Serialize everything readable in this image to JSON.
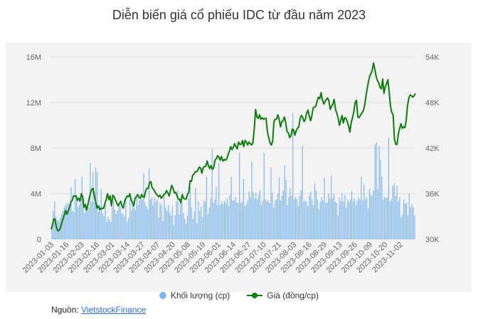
{
  "title": "Diễn biến giá cổ phiếu IDC từ đầu năm 2023",
  "legend": {
    "volume_label": "Khối lượng (cp)",
    "price_label": "Giá (đồng/cp)"
  },
  "source": {
    "label": "Nguồn:",
    "link_text": "VietstockFinance"
  },
  "colors": {
    "volume": "#7cb5ec",
    "price": "#0a7d0a",
    "grid": "#dcdcdc",
    "axis_text": "#666666"
  },
  "chart_data": {
    "type": "bar+line",
    "title": "Diễn biến giá cổ phiếu IDC từ đầu năm 2023",
    "x_tick_labels": [
      "2023-01-03",
      "2023-01-16",
      "2023-02-03",
      "2023-02-16",
      "2023-03-01",
      "2023-03-14",
      "2023-03-27",
      "2023-04-07",
      "2023-04-20",
      "2023-05-08",
      "2023-05-19",
      "2023-06-01",
      "2023-06-14",
      "2023-06-27",
      "2023-07-10",
      "2023-07-21",
      "2023-08-03",
      "2023-08-16",
      "2023-08-29",
      "2023-09-13",
      "2023-09-26",
      "2023-10-09",
      "2023-10-20",
      "2023-11-02"
    ],
    "left_axis": {
      "label": "Khối lượng (cp)",
      "ylim": [
        0,
        16000000
      ],
      "ticks": [
        0,
        4000000,
        8000000,
        12000000,
        16000000
      ],
      "tick_labels": [
        "0",
        "4M",
        "8M",
        "12M",
        "16M"
      ]
    },
    "right_axis": {
      "label": "Giá (đồng/cp)",
      "ylim": [
        30000,
        54000
      ],
      "ticks": [
        30000,
        36000,
        42000,
        48000,
        54000
      ],
      "tick_labels": [
        "30K",
        "36K",
        "42K",
        "48K",
        "54K"
      ]
    },
    "series": [
      {
        "name": "Khối lượng (cp)",
        "type": "bar",
        "axis": "left",
        "values_millions": [
          1.0,
          2.5,
          3.3,
          2.0,
          1.7,
          1.6,
          1.9,
          2.2,
          2.5,
          2.8,
          3.0,
          3.2,
          3.1,
          2.9,
          4.6,
          2.5,
          2.4,
          5.3,
          3.4,
          2.8,
          3.0,
          3.2,
          5.5,
          3.4,
          2.3,
          2.5,
          2.4,
          2.8,
          6.7,
          3.3,
          5.9,
          3.2,
          6.3,
          5.9,
          2.4,
          2.9,
          4.4,
          2.3,
          2.0,
          3.1,
          1.5,
          2.0,
          1.7,
          1.5,
          2.8,
          3.4,
          2.6,
          2.2,
          2.5,
          3.1,
          2.9,
          2.3,
          2.2,
          2.0,
          3.5,
          1.5,
          1.9,
          3.6,
          2.5,
          3.3,
          2.8,
          2.6,
          3.8,
          3.0,
          3.4,
          3.7,
          3.5,
          5.8,
          3.2,
          2.9,
          2.6,
          6.2,
          3.5,
          3.7,
          3.0,
          3.7,
          3.3,
          3.5,
          1.9,
          3.2,
          3.0,
          1.6,
          3.8,
          2.8,
          2.5,
          3.0,
          2.4,
          2.1,
          2.9,
          1.3,
          2.1,
          3.3,
          4.3,
          2.2,
          3.5,
          3.2,
          2.3,
          1.8,
          1.4,
          2.1,
          3.6,
          4.6,
          2.8,
          1.8,
          2.4,
          4.5,
          1.4,
          3.3,
          2.5,
          2.9,
          1.9,
          3.4,
          3.3,
          5.5,
          2.2,
          2.8,
          3.6,
          7.9,
          3.2,
          3.5,
          4.6,
          3.0,
          6.7,
          3.0,
          3.3,
          3.1,
          3.4,
          3.2,
          3.6,
          2.9,
          3.9,
          5.5,
          3.4,
          3.4,
          3.7,
          3.2,
          3.2,
          7.6,
          3.2,
          3.3,
          5.3,
          2.9,
          3.1,
          3.4,
          4.2,
          3.7,
          6.8,
          4.1,
          3.6,
          4.1,
          3.5,
          3.9,
          4.3,
          3.0,
          3.4,
          7.6,
          3.5,
          3.3,
          3.4,
          3.2,
          6.3,
          4.1,
          2.8,
          3.4,
          3.5,
          4.0,
          5.4,
          3.4,
          3.8,
          4.3,
          6.5,
          5.2,
          3.0,
          3.7,
          4.5,
          3.8,
          11.1,
          3.5,
          3.7,
          3.5,
          2.9,
          3.8,
          4.3,
          8.2,
          3.3,
          3.4,
          3.3,
          2.9,
          3.8,
          4.2,
          3.5,
          3.0,
          4.9,
          4.3,
          3.5,
          2.6,
          3.3,
          3.7,
          3.4,
          5.4,
          3.2,
          3.2,
          4.0,
          3.6,
          5.6,
          3.6,
          4.0,
          3.3,
          3.2,
          2.1,
          3.7,
          3.3,
          4.0,
          3.3,
          3.9,
          2.8,
          3.5,
          3.3,
          3.5,
          4.2,
          3.3,
          3.6,
          3.0,
          3.4,
          3.7,
          3.5,
          5.5,
          3.4,
          4.8,
          3.5,
          3.7,
          2.7,
          4.4,
          3.9,
          3.8,
          4.3,
          8.3,
          8.5,
          4.4,
          8.2,
          7.0,
          5.5,
          3.5,
          3.7,
          3.6,
          3.7,
          8.9,
          3.3,
          3.5,
          4.7,
          4.9,
          3.8,
          4.7,
          3.3,
          3.7,
          1.9,
          2.2,
          3.5,
          3.1,
          3.2,
          2.1,
          4.0,
          2.8,
          3.1,
          2.8,
          2.1
        ]
      },
      {
        "name": "Giá (đồng/cp)",
        "type": "line",
        "axis": "right",
        "values_thousands": [
          31.3,
          31.9,
          32.7,
          32.6,
          31.5,
          31.1,
          31.2,
          31.5,
          32.1,
          32.7,
          33.2,
          33.8,
          33.3,
          33.7,
          34.2,
          34.9,
          35.1,
          35.7,
          35.7,
          35.7,
          35.1,
          35.4,
          35.0,
          36.0,
          35.6,
          34.2,
          34.6,
          33.8,
          34.6,
          35.4,
          36.1,
          36.6,
          36.7,
          35.7,
          34.8,
          34.1,
          34.4,
          33.9,
          34.1,
          34.0,
          34.1,
          34.7,
          35.3,
          36.0,
          35.2,
          35.7,
          34.4,
          35.8,
          35.6,
          35.2,
          34.8,
          34.4,
          34.7,
          35.0,
          34.4,
          34.1,
          35.0,
          35.4,
          35.7,
          35.6,
          36.0,
          35.2,
          34.8,
          34.4,
          35.4,
          35.6,
          35.9,
          35.5,
          35.4,
          35.9,
          35.6,
          35.5,
          36.3,
          36.7,
          36.7,
          37.4,
          37.6,
          36.8,
          36.6,
          36.3,
          36.0,
          35.8,
          35.6,
          35.8,
          35.4,
          35.6,
          35.9,
          36.0,
          36.4,
          36.1,
          35.7,
          36.4,
          37.1,
          36.7,
          36.1,
          36.2,
          35.7,
          35.3,
          35.3,
          34.8,
          35.9,
          35.4,
          35.3,
          35.3,
          35.9,
          36.2,
          37.7,
          37.6,
          38.4,
          38.6,
          38.9,
          38.9,
          39.1,
          39.5,
          39.4,
          38.7,
          39.4,
          39.6,
          39.6,
          40.3,
          39.7,
          39.3,
          39.7,
          39.2,
          39.4,
          40.4,
          40.6,
          41.0,
          40.8,
          40.4,
          40.9,
          40.3,
          40.5,
          40.4,
          40.6,
          41.1,
          41.6,
          42.2,
          41.8,
          42.1,
          42.6,
          42.2,
          41.9,
          42.8,
          42.5,
          42.5,
          43.0,
          42.2,
          43.0,
          42.8,
          42.4,
          42.8,
          42.6,
          42.4,
          42.7,
          44.6,
          47.1,
          46.1,
          45.9,
          46.4,
          45.8,
          46.0,
          45.8,
          45.9,
          45.9,
          44.2,
          43.4,
          42.7,
          42.4,
          42.9,
          45.5,
          45.8,
          45.8,
          46.4,
          45.8,
          44.8,
          45.5,
          45.6,
          46.1,
          45.3,
          44.2,
          44.0,
          43.4,
          43.6,
          44.5,
          44.4,
          43.7,
          44.3,
          44.6,
          44.8,
          45.9,
          46.3,
          46.0,
          45.5,
          45.8,
          46.6,
          47.0,
          46.2,
          45.6,
          46.3,
          47.3,
          47.4,
          47.5,
          48.2,
          48.7,
          48.5,
          49.3,
          48.4,
          47.8,
          48.1,
          48.4,
          48.6,
          48.2,
          47.1,
          47.5,
          47.8,
          48.4,
          47.1,
          46.6,
          46.0,
          45.0,
          45.6,
          46.3,
          45.3,
          46.0,
          45.9,
          45.5,
          44.9,
          44.1,
          45.4,
          46.0,
          46.8,
          48.0,
          48.3,
          46.1,
          46.0,
          46.3,
          46.6,
          46.8,
          47.4,
          48.5,
          49.7,
          50.6,
          51.4,
          51.8,
          52.2,
          53.2,
          52.4,
          51.5,
          50.9,
          50.6,
          50.0,
          49.8,
          51.1,
          49.2,
          50.1,
          50.5,
          51.0,
          49.3,
          47.5,
          46.7,
          46.4,
          43.2,
          42.5,
          42.5,
          43.9,
          44.6,
          45.2,
          44.6,
          44.8,
          44.7,
          45.7,
          47.6,
          48.6,
          49.0,
          48.9,
          48.7,
          48.9,
          49.2
        ]
      }
    ]
  }
}
